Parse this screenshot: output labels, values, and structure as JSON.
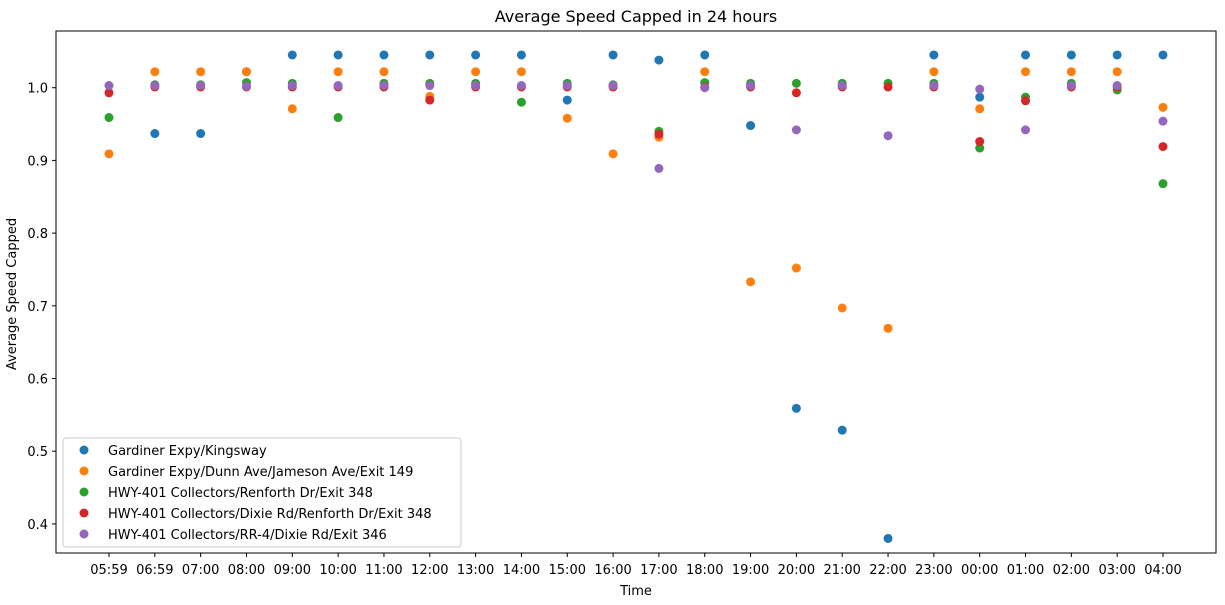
{
  "chart_data": {
    "type": "scatter",
    "title": "Average Speed Capped in 24 hours",
    "xlabel": "Time",
    "ylabel": "Average Speed Capped",
    "categories": [
      "05:59",
      "06:59",
      "07:00",
      "08:00",
      "09:00",
      "10:00",
      "11:00",
      "12:00",
      "13:00",
      "14:00",
      "15:00",
      "16:00",
      "17:00",
      "18:00",
      "19:00",
      "20:00",
      "21:00",
      "22:00",
      "23:00",
      "00:00",
      "01:00",
      "02:00",
      "03:00",
      "04:00"
    ],
    "yticks": [
      "0.4",
      "0.5",
      "0.6",
      "0.7",
      "0.8",
      "0.9",
      "1.0"
    ],
    "ylim": [
      0.36,
      1.078
    ],
    "grid": false,
    "legend_position": "lower-left",
    "series": [
      {
        "name": "Gardiner Expy/Kingsway",
        "color": "#1f77b4",
        "values": [
          null,
          0.937,
          0.937,
          1.022,
          1.045,
          1.045,
          1.045,
          1.045,
          1.045,
          1.045,
          0.983,
          1.045,
          1.038,
          1.045,
          0.948,
          0.559,
          0.529,
          0.38,
          1.045,
          0.987,
          1.045,
          1.045,
          1.045,
          1.045
        ]
      },
      {
        "name": "Gardiner Expy/Dunn Ave/Jameson Ave/Exit 149",
        "color": "#ff7f0e",
        "values": [
          0.909,
          1.022,
          1.022,
          1.022,
          0.971,
          1.022,
          1.022,
          0.988,
          1.022,
          1.022,
          0.958,
          0.909,
          0.932,
          1.022,
          0.733,
          0.752,
          0.697,
          0.669,
          1.022,
          0.971,
          1.022,
          1.022,
          1.022,
          0.973
        ]
      },
      {
        "name": "HWY-401 Collectors/Renforth Dr/Exit 348",
        "color": "#2ca02c",
        "values": [
          0.959,
          1.004,
          1.004,
          1.007,
          1.006,
          0.959,
          1.006,
          1.006,
          1.006,
          0.98,
          1.006,
          1.004,
          0.94,
          1.007,
          1.006,
          1.006,
          1.006,
          1.006,
          1.006,
          0.917,
          0.987,
          1.006,
          0.997,
          0.868
        ]
      },
      {
        "name": "HWY-401 Collectors/Dixie Rd/Renforth Dr/Exit 348",
        "color": "#d62728",
        "values": [
          0.993,
          1.001,
          1.001,
          1.001,
          1.001,
          1.001,
          1.001,
          0.983,
          1.001,
          1.001,
          1.001,
          1.001,
          0.936,
          1.001,
          1.001,
          0.993,
          1.001,
          1.001,
          1.001,
          0.926,
          0.982,
          1.001,
          1.001,
          0.919
        ]
      },
      {
        "name": "HWY-401 Collectors/RR-4/Dixie Rd/Exit 346",
        "color": "#9467bd",
        "values": [
          1.003,
          1.003,
          1.003,
          1.002,
          1.003,
          1.003,
          1.003,
          1.003,
          1.003,
          1.003,
          1.003,
          1.003,
          0.889,
          1.0,
          1.003,
          0.942,
          1.003,
          0.934,
          1.003,
          0.998,
          0.942,
          1.003,
          1.003,
          0.954
        ]
      }
    ]
  }
}
